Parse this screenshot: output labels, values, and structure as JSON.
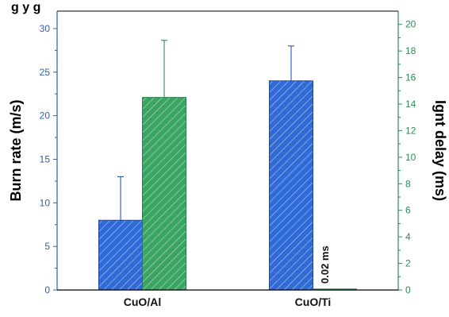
{
  "page": {
    "top_text": "g       y g"
  },
  "chart_data": {
    "type": "bar",
    "categories": [
      "CuO/Al",
      "CuO/Ti"
    ],
    "series": [
      {
        "axis": "left",
        "values": [
          8,
          24
        ],
        "error_upper": [
          13,
          28
        ],
        "color": "#2f6ad6",
        "edge": "#1b47a3"
      },
      {
        "axis": "right",
        "values": [
          14.5,
          0.02
        ],
        "error_upper": [
          18.8,
          null
        ],
        "color": "#3aa563",
        "edge": "#22804a"
      }
    ],
    "ylabel": "Burn rate (m/s)",
    "y2label": "Ignt delay (ms)",
    "ylim": [
      0,
      32
    ],
    "y2lim": [
      0,
      21
    ],
    "yticks": [
      "0",
      "5",
      "10",
      "15",
      "20",
      "25",
      "30"
    ],
    "y2ticks": [
      "0",
      "2",
      "4",
      "6",
      "8",
      "10",
      "12",
      "14",
      "16",
      "18",
      "20"
    ],
    "annotations": [
      {
        "text": "0.02 ms",
        "category": "CuO/Ti",
        "series": 1
      }
    ],
    "grid": false,
    "legend": "none",
    "colors": {
      "left_axis": "#2f5fb0",
      "right_axis": "#2e8b57"
    }
  }
}
